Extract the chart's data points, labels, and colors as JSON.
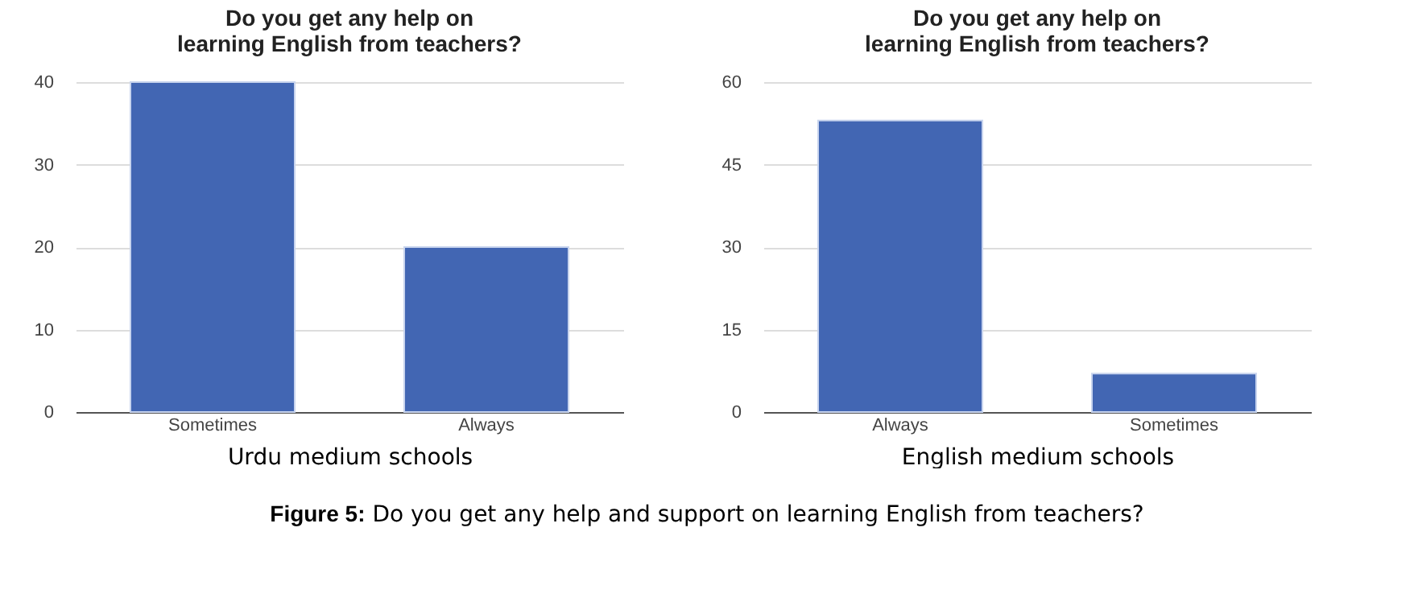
{
  "chart_data": [
    {
      "type": "bar",
      "title": "Do you get any help on learning English from teachers?",
      "xlabel": "Urdu medium schools",
      "categories": [
        "Sometimes",
        "Always"
      ],
      "series": [
        {
          "color": "#4266b3",
          "values": [
            40,
            20
          ]
        }
      ],
      "ylim": [
        0,
        40
      ],
      "yticks": [
        0,
        10,
        20,
        30,
        40
      ],
      "grid": "y"
    },
    {
      "type": "bar",
      "title": "Do you get any help on learning English from teachers?",
      "xlabel": "English medium schools",
      "categories": [
        "Always",
        "Sometimes"
      ],
      "series": [
        {
          "color": "#4266b3",
          "values": [
            53,
            7
          ]
        }
      ],
      "ylim": [
        0,
        60
      ],
      "yticks": [
        0,
        15,
        30,
        45,
        60
      ],
      "grid": "y",
      "annotations": [
        "Figure 5: Do you get any help and support on learning English from teachers?"
      ]
    }
  ]
}
